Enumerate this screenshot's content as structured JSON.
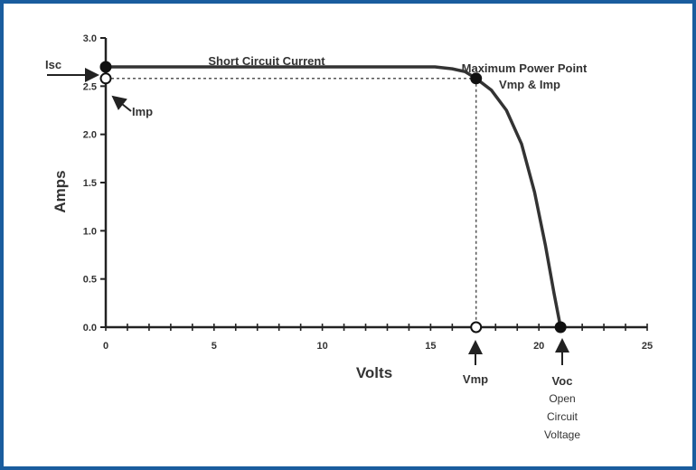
{
  "chart_data": {
    "type": "line",
    "title": "",
    "xlabel": "Volts",
    "ylabel": "Amps",
    "xlim": [
      0,
      25
    ],
    "ylim": [
      0,
      3.0
    ],
    "xticks": [
      0,
      5,
      10,
      15,
      20,
      25
    ],
    "yticks": [
      0.0,
      0.5,
      1.0,
      1.5,
      2.0,
      2.5,
      3.0
    ],
    "grid": false,
    "series": [
      {
        "x": [
          0,
          15.2,
          16.0,
          16.6,
          17.1,
          17.8,
          18.5,
          19.2,
          19.8,
          20.3,
          20.7,
          21.0
        ],
        "y": [
          2.7,
          2.7,
          2.68,
          2.65,
          2.58,
          2.46,
          2.25,
          1.9,
          1.4,
          0.85,
          0.35,
          0.0
        ]
      }
    ],
    "points": {
      "isc": {
        "x": 0,
        "y": 2.7
      },
      "imp": {
        "x": 0,
        "y": 2.58
      },
      "mpp": {
        "x": 17.1,
        "y": 2.58
      },
      "vmp": {
        "x": 17.1,
        "y": 0
      },
      "voc": {
        "x": 21.0,
        "y": 0
      }
    },
    "annotations": {
      "isc": "Isc",
      "imp": "Imp",
      "short_circuit": "Short Circuit Current",
      "mpp_line1": "Maximum Power Point",
      "mpp_line2": "Vmp & Imp",
      "vmp": "Vmp",
      "voc": "Voc",
      "voc_line2": "Open",
      "voc_line3": "Circuit",
      "voc_line4": "Voltage"
    }
  }
}
